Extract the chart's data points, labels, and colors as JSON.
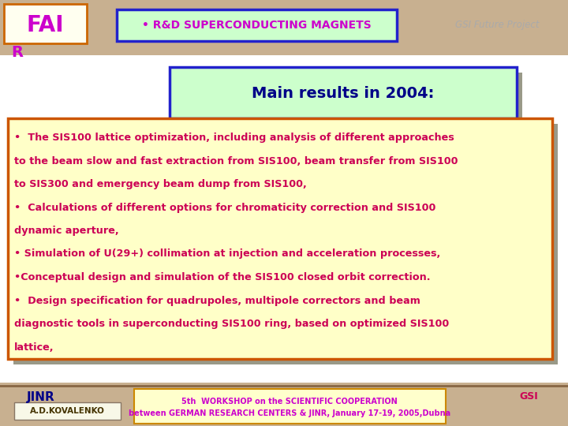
{
  "bg_color": "#c8b090",
  "header_color": "#cc00cc",
  "header_bg": "#fffff0",
  "header_border": "#cc6600",
  "subtitle_box_color": "#ccffcc",
  "subtitle_border": "#2222cc",
  "subtitle_text": "Main results in 2004:",
  "subtitle_text_color": "#000088",
  "rd_label": "• R&D SUPERCONDUCTING MAGNETS",
  "rd_label_color": "#cc00cc",
  "rd_bg": "#ccffcc",
  "rd_border": "#2222cc",
  "gsi_text": "GSI Future Project",
  "content_bg": "#ffffc8",
  "content_border": "#cc5500",
  "content_text_color": "#cc0055",
  "content_lines": [
    "•  The SIS100 lattice optimization, including analysis of different approaches",
    "to the beam slow and fast extraction from SIS100, beam transfer from SIS100",
    "to SIS300 and emergency beam dump from SIS100,",
    "•  Calculations of different options for chromaticity correction and SIS100",
    "dynamic aperture,",
    "• Simulation of U(29+) collimation at injection and acceleration processes,",
    "•Conceptual design and simulation of the SIS100 closed orbit correction.",
    "•  Design specification for quadrupoles, multipole correctors and beam",
    "diagnostic tools in superconducting SIS100 ring, based on optimized SIS100",
    "lattice,"
  ],
  "footer_author": "A.D.KOVALENKO",
  "footer_workshop_line1": "5th  WORKSHOP on the SCIENTIFIC COOPERATION",
  "footer_workshop_line2": "between GERMAN RESEARCH CENTERS & JINR, January 17-19, 2005,Dubna",
  "footer_text_color": "#cc00cc",
  "footer_bg": "#ffffcc",
  "footer_border": "#cc8800",
  "jinr_color": "#000088",
  "gsi_footer_color": "#cc0055",
  "shadow_color": "#999988"
}
